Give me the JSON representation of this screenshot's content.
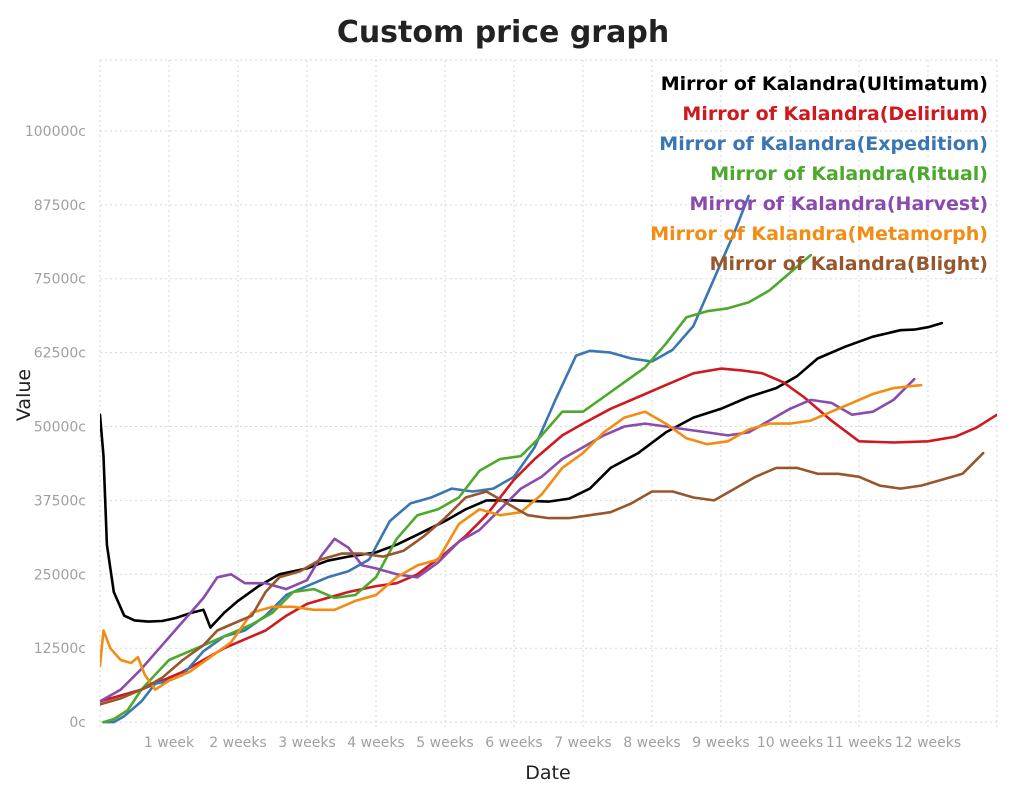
{
  "chart_data": {
    "type": "line",
    "title": "Custom price graph",
    "xlabel": "Date",
    "ylabel": "Value",
    "x_unit": "weeks",
    "xlim": [
      0,
      13
    ],
    "ylim": [
      -1000,
      112000
    ],
    "y_ticks": [
      0,
      12500,
      25000,
      37500,
      50000,
      62500,
      75000,
      87500,
      100000
    ],
    "y_tick_labels": [
      "0c",
      "12500c",
      "25000c",
      "37500c",
      "50000c",
      "62500c",
      "75000c",
      "87500c",
      "100000c"
    ],
    "x_ticks": [
      1,
      2,
      3,
      4,
      5,
      6,
      7,
      8,
      9,
      10,
      11,
      12
    ],
    "x_tick_labels": [
      "1 week",
      "2 weeks",
      "3 weeks",
      "4 weeks",
      "5 weeks",
      "6 weeks",
      "7 weeks",
      "8 weeks",
      "9 weeks",
      "10 weeks",
      "11 weeks",
      "12 weeks"
    ],
    "grid": true,
    "legend_position": "top-right",
    "series": [
      {
        "name": "Mirror of Kalandra(Ultimatum)",
        "color": "#000000",
        "points": [
          [
            0,
            52000
          ],
          [
            0.05,
            45000
          ],
          [
            0.1,
            30000
          ],
          [
            0.2,
            22000
          ],
          [
            0.35,
            18000
          ],
          [
            0.5,
            17200
          ],
          [
            0.7,
            17000
          ],
          [
            0.9,
            17100
          ],
          [
            1.1,
            17600
          ],
          [
            1.3,
            18400
          ],
          [
            1.5,
            19000
          ],
          [
            1.6,
            16000
          ],
          [
            1.8,
            18500
          ],
          [
            2.0,
            20500
          ],
          [
            2.3,
            23000
          ],
          [
            2.6,
            25000
          ],
          [
            3.0,
            26000
          ],
          [
            3.3,
            27300
          ],
          [
            3.6,
            28000
          ],
          [
            4.0,
            28700
          ],
          [
            4.3,
            30000
          ],
          [
            4.6,
            31700
          ],
          [
            5.0,
            34000
          ],
          [
            5.3,
            36000
          ],
          [
            5.6,
            37500
          ],
          [
            6.0,
            37500
          ],
          [
            6.5,
            37300
          ],
          [
            6.8,
            37800
          ],
          [
            7.1,
            39500
          ],
          [
            7.4,
            43000
          ],
          [
            7.8,
            45500
          ],
          [
            8.2,
            49000
          ],
          [
            8.6,
            51500
          ],
          [
            9.0,
            53000
          ],
          [
            9.4,
            55000
          ],
          [
            9.8,
            56500
          ],
          [
            10.1,
            58500
          ],
          [
            10.4,
            61500
          ],
          [
            10.8,
            63500
          ],
          [
            11.2,
            65200
          ],
          [
            11.6,
            66300
          ],
          [
            11.8,
            66400
          ],
          [
            12.0,
            66800
          ],
          [
            12.2,
            67500
          ]
        ]
      },
      {
        "name": "Mirror of Kalandra(Delirium)",
        "color": "#d0191e",
        "points": [
          [
            0,
            3500
          ],
          [
            0.3,
            4500
          ],
          [
            0.6,
            5500
          ],
          [
            0.9,
            7000
          ],
          [
            1.2,
            8500
          ],
          [
            1.5,
            10500
          ],
          [
            1.8,
            12500
          ],
          [
            2.1,
            14000
          ],
          [
            2.4,
            15500
          ],
          [
            2.7,
            18000
          ],
          [
            3.0,
            20000
          ],
          [
            3.3,
            21000
          ],
          [
            3.6,
            22000
          ],
          [
            4.0,
            23000
          ],
          [
            4.3,
            23500
          ],
          [
            4.6,
            25000
          ],
          [
            5.0,
            28500
          ],
          [
            5.3,
            31500
          ],
          [
            5.6,
            35000
          ],
          [
            6.0,
            41000
          ],
          [
            6.3,
            44500
          ],
          [
            6.7,
            48500
          ],
          [
            7.0,
            50500
          ],
          [
            7.4,
            53000
          ],
          [
            7.8,
            55000
          ],
          [
            8.2,
            57000
          ],
          [
            8.6,
            59000
          ],
          [
            9.0,
            59800
          ],
          [
            9.3,
            59500
          ],
          [
            9.6,
            59000
          ],
          [
            9.9,
            57500
          ],
          [
            10.2,
            55000
          ],
          [
            10.6,
            51000
          ],
          [
            11.0,
            47500
          ],
          [
            11.5,
            47300
          ],
          [
            12.0,
            47500
          ],
          [
            12.4,
            48300
          ],
          [
            12.7,
            49800
          ],
          [
            13.0,
            52000
          ]
        ]
      },
      {
        "name": "Mirror of Kalandra(Expedition)",
        "color": "#3b76b4",
        "points": [
          [
            0.05,
            0
          ],
          [
            0.2,
            0
          ],
          [
            0.35,
            1000
          ],
          [
            0.6,
            3500
          ],
          [
            0.8,
            6500
          ],
          [
            1.0,
            7000
          ],
          [
            1.2,
            8000
          ],
          [
            1.5,
            12000
          ],
          [
            1.8,
            14500
          ],
          [
            2.1,
            15500
          ],
          [
            2.4,
            18000
          ],
          [
            2.7,
            21500
          ],
          [
            3.0,
            23000
          ],
          [
            3.3,
            24500
          ],
          [
            3.6,
            25500
          ],
          [
            3.9,
            27500
          ],
          [
            4.2,
            34000
          ],
          [
            4.5,
            37000
          ],
          [
            4.8,
            38000
          ],
          [
            5.1,
            39500
          ],
          [
            5.4,
            39000
          ],
          [
            5.7,
            39500
          ],
          [
            6.0,
            41500
          ],
          [
            6.3,
            46500
          ],
          [
            6.6,
            54500
          ],
          [
            6.9,
            62000
          ],
          [
            7.1,
            62800
          ],
          [
            7.4,
            62500
          ],
          [
            7.7,
            61500
          ],
          [
            8.0,
            61000
          ],
          [
            8.3,
            63000
          ],
          [
            8.6,
            67000
          ],
          [
            8.9,
            75000
          ],
          [
            9.2,
            83000
          ],
          [
            9.4,
            89000
          ]
        ]
      },
      {
        "name": "Mirror of Kalandra(Ritual)",
        "color": "#4ca92c",
        "points": [
          [
            0.05,
            0
          ],
          [
            0.2,
            500
          ],
          [
            0.4,
            2000
          ],
          [
            0.6,
            5500
          ],
          [
            0.8,
            8000
          ],
          [
            1.0,
            10500
          ],
          [
            1.3,
            12000
          ],
          [
            1.6,
            13500
          ],
          [
            1.9,
            15000
          ],
          [
            2.2,
            16500
          ],
          [
            2.5,
            18500
          ],
          [
            2.8,
            22000
          ],
          [
            3.1,
            22500
          ],
          [
            3.4,
            21000
          ],
          [
            3.7,
            21500
          ],
          [
            4.0,
            24500
          ],
          [
            4.3,
            31000
          ],
          [
            4.6,
            35000
          ],
          [
            4.9,
            36000
          ],
          [
            5.2,
            38000
          ],
          [
            5.5,
            42500
          ],
          [
            5.8,
            44500
          ],
          [
            6.1,
            45000
          ],
          [
            6.4,
            48500
          ],
          [
            6.7,
            52500
          ],
          [
            7.0,
            52500
          ],
          [
            7.3,
            55000
          ],
          [
            7.6,
            57500
          ],
          [
            7.9,
            60000
          ],
          [
            8.2,
            64000
          ],
          [
            8.5,
            68500
          ],
          [
            8.8,
            69500
          ],
          [
            9.1,
            70000
          ],
          [
            9.4,
            71000
          ],
          [
            9.7,
            73000
          ],
          [
            10.0,
            76000
          ],
          [
            10.3,
            79000
          ]
        ]
      },
      {
        "name": "Mirror of Kalandra(Harvest)",
        "color": "#8a4bad",
        "points": [
          [
            0,
            3500
          ],
          [
            0.3,
            5500
          ],
          [
            0.6,
            9000
          ],
          [
            0.9,
            13000
          ],
          [
            1.2,
            17000
          ],
          [
            1.5,
            21000
          ],
          [
            1.7,
            24500
          ],
          [
            1.9,
            25000
          ],
          [
            2.1,
            23500
          ],
          [
            2.4,
            23500
          ],
          [
            2.7,
            22500
          ],
          [
            3.0,
            24000
          ],
          [
            3.2,
            28000
          ],
          [
            3.4,
            31000
          ],
          [
            3.6,
            29500
          ],
          [
            3.8,
            26500
          ],
          [
            4.0,
            26000
          ],
          [
            4.3,
            25000
          ],
          [
            4.6,
            24500
          ],
          [
            4.9,
            27000
          ],
          [
            5.2,
            30500
          ],
          [
            5.5,
            32500
          ],
          [
            5.8,
            36000
          ],
          [
            6.1,
            39500
          ],
          [
            6.4,
            41500
          ],
          [
            6.7,
            44500
          ],
          [
            7.0,
            46500
          ],
          [
            7.3,
            48500
          ],
          [
            7.6,
            50000
          ],
          [
            7.9,
            50500
          ],
          [
            8.2,
            50000
          ],
          [
            8.5,
            49500
          ],
          [
            8.8,
            49000
          ],
          [
            9.1,
            48500
          ],
          [
            9.4,
            49000
          ],
          [
            9.7,
            51000
          ],
          [
            10.0,
            53000
          ],
          [
            10.3,
            54500
          ],
          [
            10.6,
            54000
          ],
          [
            10.9,
            52000
          ],
          [
            11.2,
            52500
          ],
          [
            11.5,
            54500
          ],
          [
            11.8,
            58000
          ]
        ]
      },
      {
        "name": "Mirror of Kalandra(Metamorph)",
        "color": "#f28c12",
        "points": [
          [
            0,
            9500
          ],
          [
            0.05,
            15500
          ],
          [
            0.15,
            12500
          ],
          [
            0.3,
            10500
          ],
          [
            0.45,
            10000
          ],
          [
            0.55,
            11000
          ],
          [
            0.65,
            8000
          ],
          [
            0.8,
            5500
          ],
          [
            1.0,
            7000
          ],
          [
            1.3,
            8500
          ],
          [
            1.6,
            11000
          ],
          [
            1.9,
            13500
          ],
          [
            2.2,
            18500
          ],
          [
            2.5,
            19500
          ],
          [
            2.8,
            19500
          ],
          [
            3.1,
            19000
          ],
          [
            3.4,
            19000
          ],
          [
            3.7,
            20500
          ],
          [
            4.0,
            21500
          ],
          [
            4.3,
            24500
          ],
          [
            4.6,
            26500
          ],
          [
            4.9,
            27500
          ],
          [
            5.2,
            33500
          ],
          [
            5.5,
            36000
          ],
          [
            5.8,
            35000
          ],
          [
            6.1,
            35500
          ],
          [
            6.4,
            38500
          ],
          [
            6.7,
            43000
          ],
          [
            7.0,
            45500
          ],
          [
            7.3,
            49000
          ],
          [
            7.6,
            51500
          ],
          [
            7.9,
            52500
          ],
          [
            8.2,
            50500
          ],
          [
            8.5,
            48000
          ],
          [
            8.8,
            47000
          ],
          [
            9.1,
            47500
          ],
          [
            9.4,
            49500
          ],
          [
            9.7,
            50500
          ],
          [
            10.0,
            50500
          ],
          [
            10.3,
            51000
          ],
          [
            10.6,
            52500
          ],
          [
            10.9,
            54000
          ],
          [
            11.2,
            55500
          ],
          [
            11.5,
            56500
          ],
          [
            11.9,
            57000
          ]
        ]
      },
      {
        "name": "Mirror of Kalandra(Blight)",
        "color": "#97562b",
        "points": [
          [
            0,
            3000
          ],
          [
            0.3,
            4000
          ],
          [
            0.6,
            5500
          ],
          [
            0.9,
            7500
          ],
          [
            1.2,
            10500
          ],
          [
            1.5,
            13000
          ],
          [
            1.7,
            15500
          ],
          [
            1.9,
            16500
          ],
          [
            2.2,
            18000
          ],
          [
            2.4,
            22000
          ],
          [
            2.6,
            24500
          ],
          [
            2.9,
            25500
          ],
          [
            3.2,
            27500
          ],
          [
            3.5,
            28500
          ],
          [
            3.8,
            28500
          ],
          [
            4.1,
            28000
          ],
          [
            4.4,
            29000
          ],
          [
            4.7,
            31500
          ],
          [
            5.0,
            34500
          ],
          [
            5.3,
            38000
          ],
          [
            5.6,
            39000
          ],
          [
            5.9,
            37000
          ],
          [
            6.2,
            35000
          ],
          [
            6.5,
            34500
          ],
          [
            6.8,
            34500
          ],
          [
            7.1,
            35000
          ],
          [
            7.4,
            35500
          ],
          [
            7.7,
            37000
          ],
          [
            8.0,
            39000
          ],
          [
            8.3,
            39000
          ],
          [
            8.6,
            38000
          ],
          [
            8.9,
            37500
          ],
          [
            9.2,
            39500
          ],
          [
            9.5,
            41500
          ],
          [
            9.8,
            43000
          ],
          [
            10.1,
            43000
          ],
          [
            10.4,
            42000
          ],
          [
            10.7,
            42000
          ],
          [
            11.0,
            41500
          ],
          [
            11.3,
            40000
          ],
          [
            11.6,
            39500
          ],
          [
            11.9,
            40000
          ],
          [
            12.2,
            41000
          ],
          [
            12.5,
            42000
          ],
          [
            12.8,
            45500
          ]
        ]
      }
    ]
  }
}
